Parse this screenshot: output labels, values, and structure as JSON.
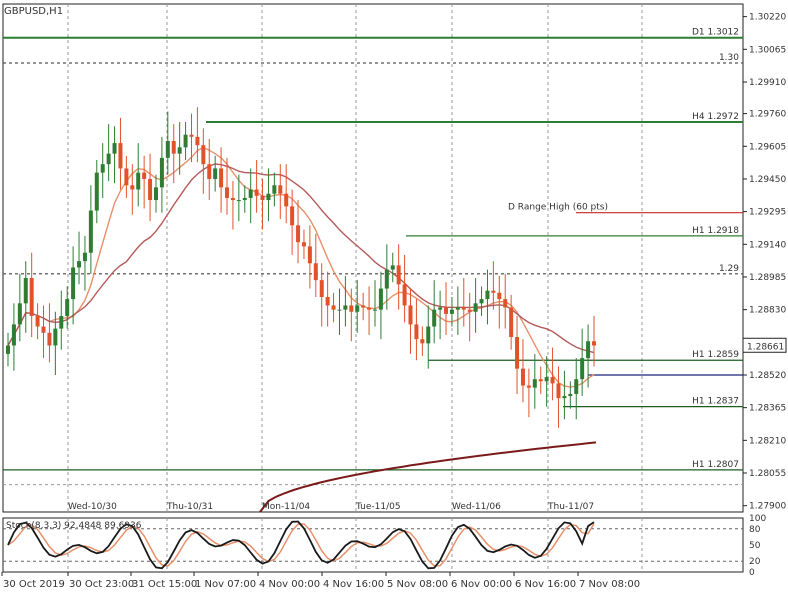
{
  "chart_data": {
    "type": "line",
    "title": "GBPUSD,H1",
    "price_axis": {
      "range": [
        1.2787,
        1.3028
      ],
      "ticks": [
        "1.30220",
        "1.30065",
        "1.29910",
        "1.29760",
        "1.29605",
        "1.29450",
        "1.29295",
        "1.29140",
        "1.28985",
        "1.28830",
        "1.28675",
        "1.28520",
        "1.28365",
        "1.28210",
        "1.28055",
        "1.27900"
      ]
    },
    "current_price": "1.28661",
    "time_labels": [
      "30 Oct 2019",
      "30 Oct 23:00",
      "31 Oct 15:00",
      "1 Nov 07:00",
      "4 Nov 00:00",
      "4 Nov 16:00",
      "5 Nov 08:00",
      "6 Nov 00:00",
      "6 Nov 16:00",
      "7 Nov 08:00"
    ],
    "day_labels": [
      "Wed-10/30",
      "Thu-10/31",
      "Mon-11/04",
      "Tue-11/05",
      "Wed-11/06",
      "Thu-11/07"
    ],
    "levels": [
      {
        "label": "D1 1.3012",
        "price": 1.3012,
        "color": "#2e7d32",
        "style": "solid"
      },
      {
        "label": "1.30",
        "price": 1.3,
        "color": "#555555",
        "style": "dotted"
      },
      {
        "label": "H4 1.2972",
        "price": 1.2972,
        "color": "#2e7d32",
        "style": "solid"
      },
      {
        "label": "D Range High (60 pts)",
        "price": 1.2929,
        "color": "#c62828",
        "style": "solid"
      },
      {
        "label": "H1 1.2918",
        "price": 1.2918,
        "color": "#2e7d32",
        "style": "solid"
      },
      {
        "label": "1.29",
        "price": 1.29,
        "color": "#555555",
        "style": "dotted"
      },
      {
        "label": "H1 1.2859",
        "price": 1.2859,
        "color": "#1b5e20",
        "style": "solid"
      },
      {
        "label": "H1 1.2837",
        "price": 1.2837,
        "color": "#1b5e20",
        "style": "solid"
      },
      {
        "label": "H1 1.2807",
        "price": 1.2807,
        "color": "#1b5e20",
        "style": "solid"
      }
    ],
    "blue_level": 1.2852,
    "closes": [
      1.2866,
      1.2876,
      1.2886,
      1.2898,
      1.288,
      1.2875,
      1.2872,
      1.2866,
      1.2874,
      1.288,
      1.2888,
      1.2903,
      1.2906,
      1.291,
      1.293,
      1.2948,
      1.2952,
      1.2957,
      1.2962,
      1.295,
      1.2942,
      1.294,
      1.2948,
      1.2945,
      1.2935,
      1.2941,
      1.2955,
      1.2963,
      1.2957,
      1.296,
      1.2966,
      1.2965,
      1.2961,
      1.2952,
      1.2945,
      1.295,
      1.2941,
      1.2936,
      1.2935,
      1.2935,
      1.2936,
      1.294,
      1.2937,
      1.2935,
      1.2938,
      1.2942,
      1.2938,
      1.2932,
      1.2923,
      1.2915,
      1.2913,
      1.2905,
      1.2897,
      1.2889,
      1.2885,
      1.2883,
      1.2883,
      1.2885,
      1.2882,
      1.2885,
      1.2884,
      1.2883,
      1.2883,
      1.2893,
      1.2902,
      1.2904,
      1.2895,
      1.2885,
      1.2876,
      1.2869,
      1.2867,
      1.2875,
      1.2883,
      1.2884,
      1.2881,
      1.2883,
      1.2884,
      1.2883,
      1.2882,
      1.2886,
      1.2888,
      1.2892,
      1.2891,
      1.2888,
      1.2884,
      1.287,
      1.2855,
      1.2847,
      1.2846,
      1.285,
      1.2849,
      1.2851,
      1.2848,
      1.2841,
      1.2842,
      1.2843,
      1.285,
      1.286,
      1.2868,
      1.2866
    ],
    "ma_fast_color": "#e8906a",
    "ma_slow_color": "#b55a5a",
    "ma_long": {
      "color": "#7b1a1a",
      "start": 1.2787,
      "end": 1.282
    },
    "candle_up_color": "#2e7d32",
    "candle_down_color": "#e2522a",
    "stochastic": {
      "label": "Stoch(8,3,3) 92.4848 89.6936",
      "main": 92.4848,
      "signal": 89.6936,
      "ticks": [
        "100",
        "80",
        "50",
        "20",
        "0"
      ],
      "main_color": "#1a1a1a",
      "signal_color": "#e8906a",
      "level_color": "#666666"
    },
    "grid": true
  }
}
